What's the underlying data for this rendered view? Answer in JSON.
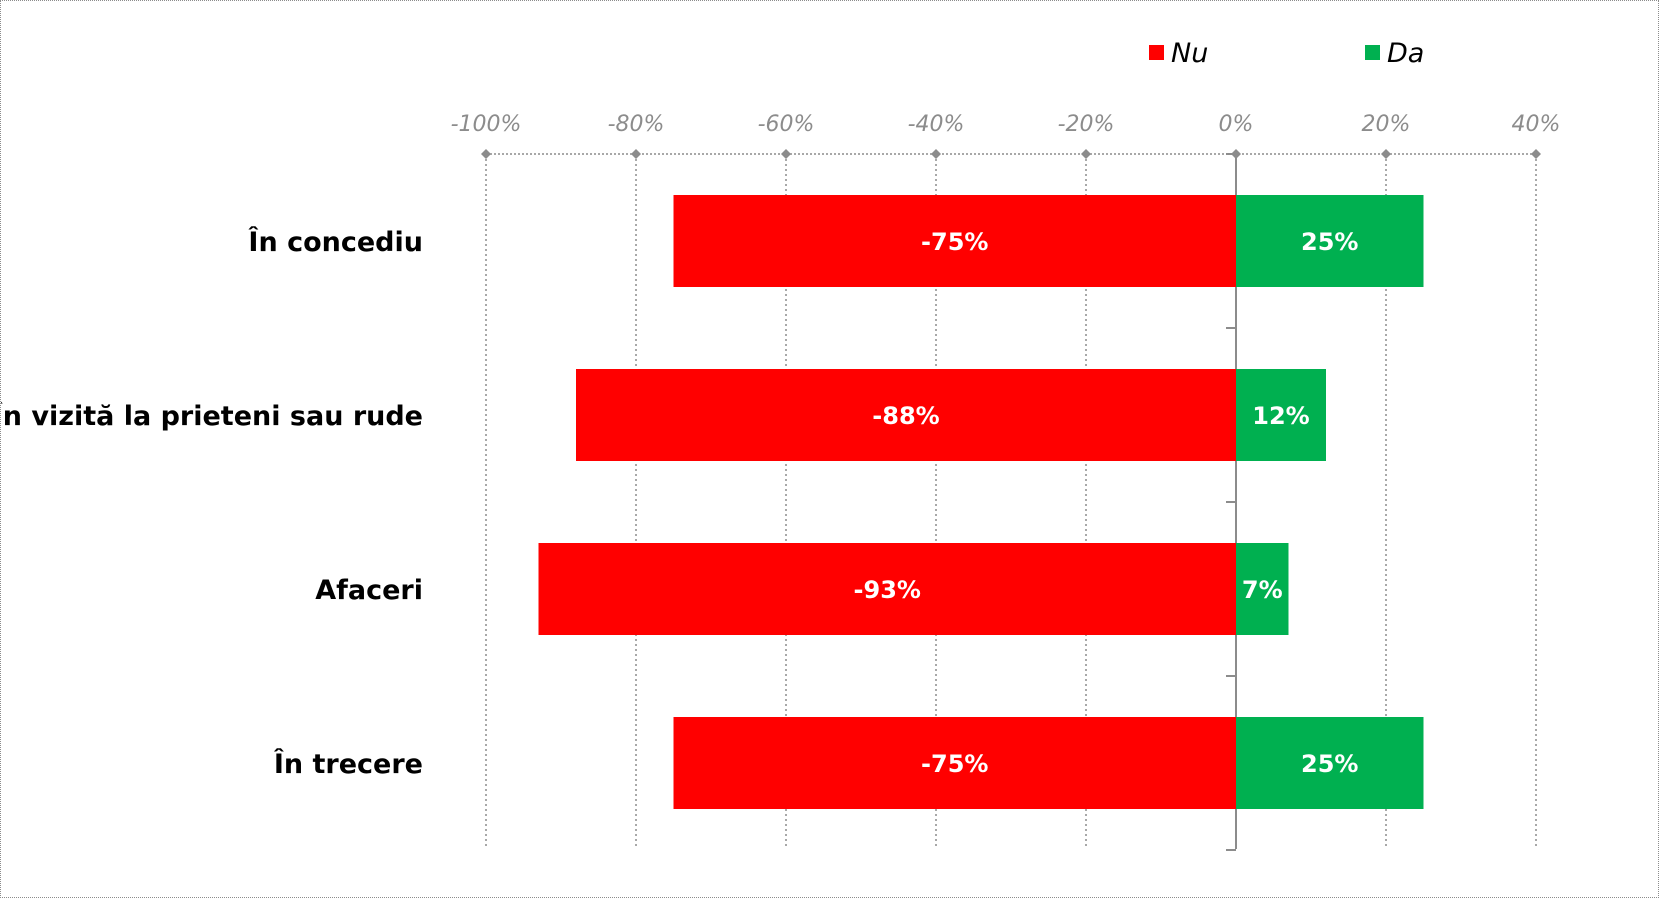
{
  "chart_data": {
    "type": "bar",
    "orientation": "horizontal",
    "stacked": true,
    "categories": [
      "În concediu",
      "În vizită la prieteni sau rude",
      "Afaceri",
      "În trecere"
    ],
    "series": [
      {
        "name": "Nu",
        "color": "#ff0000",
        "values": [
          -75,
          -88,
          -93,
          -75
        ],
        "labels": [
          "-75%",
          "-88%",
          "-93%",
          "-75%"
        ]
      },
      {
        "name": "Da",
        "color": "#00b050",
        "values": [
          25,
          12,
          7,
          25
        ],
        "labels": [
          "25%",
          "12%",
          "7%",
          "25%"
        ]
      }
    ],
    "xlim": [
      -100,
      40
    ],
    "xticks": [
      -100,
      -80,
      -60,
      -40,
      -20,
      0,
      20,
      40
    ],
    "xtick_labels": [
      "-100%",
      "-80%",
      "-60%",
      "-40%",
      "-20%",
      "0%",
      "20%",
      "40%"
    ],
    "x_axis_position": "top",
    "grid": true,
    "legend_position": "top-right",
    "title": "",
    "xlabel": "",
    "ylabel": ""
  }
}
